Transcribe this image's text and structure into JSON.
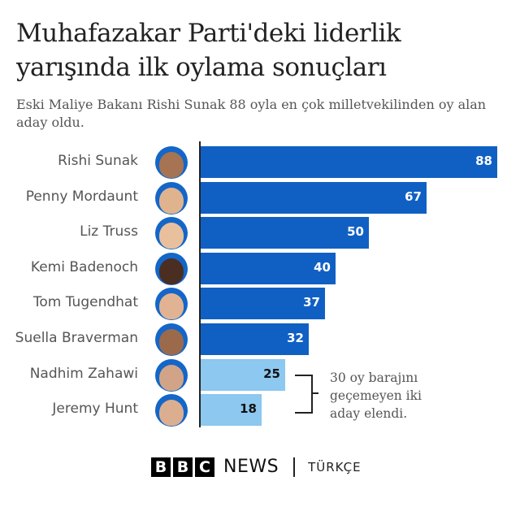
{
  "header": {
    "title": "Muhafazakar Parti'deki liderlik yarışında ilk oylama sonuçları",
    "subtitle": "Eski Maliye Bakanı Rishi Sunak 88 oyla en çok milletvekilinden oy alan aday oldu."
  },
  "colors": {
    "passed": "#1060c4",
    "eliminated": "#8cc8f0",
    "avatar_ring": "#1466c8"
  },
  "rows": [
    {
      "name": "Rishi Sunak",
      "value": "88",
      "skin": "#a67452"
    },
    {
      "name": "Penny Mordaunt",
      "value": "67",
      "skin": "#e0b38f"
    },
    {
      "name": "Liz Truss",
      "value": "50",
      "skin": "#e8c09e"
    },
    {
      "name": "Kemi Badenoch",
      "value": "40",
      "skin": "#4a2e22"
    },
    {
      "name": "Tom Tugendhat",
      "value": "37",
      "skin": "#e2b393"
    },
    {
      "name": "Suella Braverman",
      "value": "32",
      "skin": "#9b6a4b"
    },
    {
      "name": "Nadhim Zahawi",
      "value": "25",
      "skin": "#d2a487"
    },
    {
      "name": "Jeremy Hunt",
      "value": "18",
      "skin": "#dcae90"
    }
  ],
  "annotation": {
    "line1": "30 oy barajını",
    "line2": "geçemeyen iki",
    "line3": "aday elendi."
  },
  "footer": {
    "bbc_letters": [
      "B",
      "B",
      "C"
    ],
    "news": "NEWS",
    "service": "TÜRKÇE"
  },
  "chart_data": {
    "type": "bar",
    "orientation": "horizontal",
    "title": "Muhafazakar Parti'deki liderlik yarışında ilk oylama sonuçları",
    "subtitle": "Eski Maliye Bakanı Rishi Sunak 88 oyla en çok milletvekilinden oy alan aday oldu.",
    "categories": [
      "Rishi Sunak",
      "Penny Mordaunt",
      "Liz Truss",
      "Kemi Badenoch",
      "Tom Tugendhat",
      "Suella Braverman",
      "Nadhim Zahawi",
      "Jeremy Hunt"
    ],
    "values": [
      88,
      67,
      50,
      40,
      37,
      32,
      25,
      18
    ],
    "status": [
      "passed",
      "passed",
      "passed",
      "passed",
      "passed",
      "passed",
      "eliminated",
      "eliminated"
    ],
    "threshold": 30,
    "annotation": "30 oy barajını geçemeyen iki aday elendi.",
    "xlabel": "",
    "ylabel": "",
    "grid": false,
    "data_labels": true,
    "xlim": [
      0,
      88
    ]
  }
}
